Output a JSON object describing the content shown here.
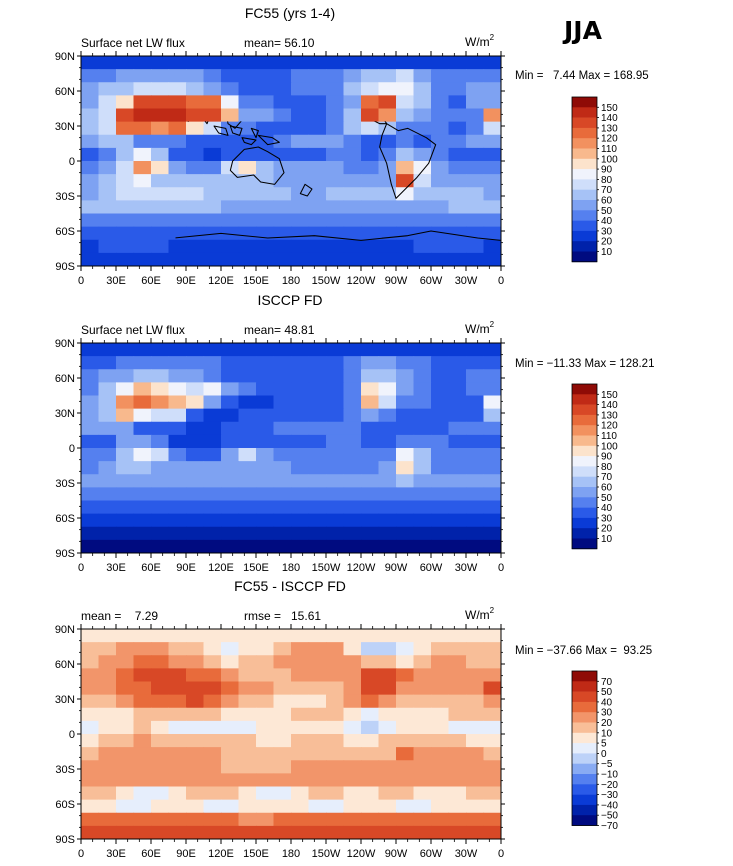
{
  "season_label": "JJA",
  "palettes": {
    "flux": [
      "#000b80",
      "#0022aa",
      "#0a3bd6",
      "#2a5ae8",
      "#5580ef",
      "#7ea2f2",
      "#a6c2f6",
      "#cfdefa",
      "#f0f3fc",
      "#fce3cc",
      "#f8b98d",
      "#f2915f",
      "#e86b3b",
      "#d84826",
      "#c02a16",
      "#8f0b06"
    ],
    "diff": [
      "#000b80",
      "#0022aa",
      "#0a3bd6",
      "#2a5ae8",
      "#5580ef",
      "#89abf3",
      "#bdd2f8",
      "#e6eefc",
      "#fde8d6",
      "#f8be98",
      "#f2956a",
      "#e86b3b",
      "#d84826",
      "#c02a16",
      "#8f0b06"
    ]
  },
  "chart_data": [
    {
      "type": "heatmap",
      "title": "FC55 (yrs 1-4)",
      "variable": "Surface net LW flux",
      "stat_text": "mean=  56.10",
      "units": "W/m",
      "units_sup": "2",
      "minmax_text": "Min =   7.44 Max = 168.95",
      "y_ticks": [
        "90N",
        "60N",
        "30N",
        "0",
        "30S",
        "60S",
        "90S"
      ],
      "x_ticks": [
        "0",
        "30E",
        "60E",
        "90E",
        "120E",
        "150E",
        "180",
        "150W",
        "120W",
        "90W",
        "60W",
        "30W",
        "0"
      ],
      "colorbar_levels": [
        "150",
        "140",
        "130",
        "120",
        "110",
        "100",
        "90",
        "80",
        "70",
        "60",
        "50",
        "40",
        "30",
        "20",
        "10"
      ],
      "field": [
        [
          2,
          2,
          2,
          2,
          2,
          2,
          2,
          2,
          2,
          2,
          2,
          2,
          2,
          2,
          2,
          2,
          2,
          2,
          2,
          2,
          2,
          2,
          2,
          2
        ],
        [
          4,
          4,
          5,
          5,
          5,
          5,
          5,
          4,
          3,
          3,
          3,
          3,
          4,
          4,
          4,
          5,
          6,
          6,
          7,
          5,
          4,
          4,
          4,
          4
        ],
        [
          5,
          6,
          6,
          7,
          7,
          7,
          6,
          5,
          4,
          3,
          3,
          3,
          4,
          4,
          4,
          6,
          7,
          8,
          8,
          6,
          4,
          4,
          5,
          5
        ],
        [
          5,
          7,
          9,
          13,
          13,
          13,
          12,
          12,
          8,
          4,
          4,
          3,
          3,
          3,
          4,
          5,
          12,
          13,
          7,
          6,
          4,
          3,
          5,
          5
        ],
        [
          6,
          7,
          13,
          14,
          14,
          14,
          13,
          13,
          10,
          5,
          5,
          4,
          3,
          3,
          4,
          6,
          13,
          11,
          6,
          5,
          4,
          4,
          4,
          11
        ],
        [
          6,
          7,
          12,
          12,
          11,
          12,
          9,
          7,
          4,
          4,
          3,
          3,
          3,
          3,
          4,
          6,
          7,
          6,
          4,
          4,
          4,
          3,
          4,
          7
        ],
        [
          5,
          6,
          6,
          4,
          4,
          4,
          3,
          3,
          3,
          3,
          3,
          4,
          5,
          5,
          5,
          4,
          3,
          3,
          4,
          3,
          4,
          4,
          5,
          5
        ],
        [
          3,
          4,
          6,
          8,
          6,
          3,
          3,
          2,
          3,
          3,
          3,
          3,
          3,
          3,
          4,
          4,
          3,
          4,
          6,
          5,
          4,
          3,
          3,
          3
        ],
        [
          4,
          5,
          7,
          11,
          9,
          5,
          4,
          4,
          7,
          9,
          6,
          5,
          5,
          5,
          5,
          4,
          4,
          5,
          10,
          8,
          5,
          4,
          4,
          4
        ],
        [
          5,
          6,
          7,
          8,
          6,
          6,
          6,
          6,
          6,
          6,
          6,
          5,
          5,
          5,
          5,
          5,
          5,
          5,
          13,
          7,
          5,
          5,
          5,
          5
        ],
        [
          5,
          6,
          7,
          7,
          7,
          7,
          7,
          6,
          6,
          6,
          6,
          6,
          5,
          5,
          6,
          6,
          6,
          6,
          8,
          6,
          6,
          6,
          6,
          5
        ],
        [
          6,
          6,
          6,
          6,
          6,
          6,
          6,
          6,
          5,
          5,
          5,
          5,
          5,
          5,
          5,
          5,
          5,
          5,
          5,
          5,
          5,
          6,
          6,
          6
        ],
        [
          4,
          4,
          4,
          4,
          4,
          4,
          4,
          4,
          4,
          4,
          4,
          4,
          4,
          4,
          4,
          4,
          4,
          4,
          4,
          4,
          4,
          4,
          4,
          4
        ],
        [
          3,
          3,
          3,
          3,
          3,
          3,
          3,
          3,
          3,
          3,
          3,
          3,
          3,
          3,
          3,
          3,
          3,
          3,
          3,
          3,
          3,
          3,
          3,
          3
        ],
        [
          2,
          3,
          3,
          3,
          3,
          2,
          2,
          2,
          2,
          2,
          2,
          2,
          2,
          2,
          2,
          2,
          2,
          2,
          2,
          3,
          3,
          3,
          3,
          2
        ],
        [
          2,
          2,
          2,
          2,
          2,
          2,
          2,
          2,
          2,
          2,
          2,
          2,
          2,
          2,
          2,
          2,
          2,
          2,
          2,
          2,
          2,
          2,
          2,
          2
        ]
      ]
    },
    {
      "type": "heatmap",
      "title": "ISCCP FD",
      "variable": "Surface net LW flux",
      "stat_text": "mean=  48.81",
      "units": "W/m",
      "units_sup": "2",
      "minmax_text": "Min = −11.33 Max = 128.21",
      "y_ticks": [
        "90N",
        "60N",
        "30N",
        "0",
        "30S",
        "60S",
        "90S"
      ],
      "x_ticks": [
        "0",
        "30E",
        "60E",
        "90E",
        "120E",
        "150E",
        "180",
        "150W",
        "120W",
        "90W",
        "60W",
        "30W",
        "0"
      ],
      "colorbar_levels": [
        "150",
        "140",
        "130",
        "120",
        "110",
        "100",
        "90",
        "80",
        "70",
        "60",
        "50",
        "40",
        "30",
        "20",
        "10"
      ],
      "field": [
        [
          2,
          2,
          2,
          2,
          2,
          2,
          2,
          2,
          2,
          2,
          2,
          2,
          2,
          2,
          2,
          2,
          2,
          2,
          2,
          2,
          2,
          2,
          2,
          2
        ],
        [
          3,
          3,
          4,
          4,
          4,
          4,
          4,
          4,
          3,
          3,
          3,
          3,
          3,
          3,
          3,
          4,
          5,
          5,
          4,
          4,
          3,
          3,
          3,
          3
        ],
        [
          4,
          5,
          5,
          6,
          6,
          5,
          5,
          4,
          3,
          3,
          3,
          3,
          3,
          3,
          3,
          4,
          6,
          6,
          5,
          4,
          3,
          3,
          4,
          4
        ],
        [
          4,
          6,
          8,
          10,
          9,
          8,
          7,
          8,
          5,
          4,
          3,
          3,
          3,
          3,
          3,
          4,
          9,
          8,
          5,
          4,
          3,
          3,
          4,
          4
        ],
        [
          5,
          6,
          11,
          12,
          11,
          10,
          9,
          5,
          3,
          2,
          2,
          3,
          3,
          3,
          3,
          4,
          10,
          7,
          4,
          4,
          3,
          3,
          3,
          8
        ],
        [
          5,
          6,
          10,
          8,
          7,
          7,
          3,
          2,
          2,
          3,
          3,
          3,
          3,
          3,
          3,
          4,
          5,
          4,
          3,
          3,
          3,
          3,
          3,
          6
        ],
        [
          5,
          5,
          5,
          3,
          3,
          3,
          2,
          2,
          3,
          3,
          3,
          4,
          4,
          4,
          4,
          4,
          3,
          3,
          3,
          3,
          3,
          4,
          4,
          4
        ],
        [
          3,
          3,
          5,
          5,
          4,
          2,
          2,
          2,
          3,
          3,
          3,
          3,
          3,
          3,
          4,
          4,
          3,
          3,
          4,
          4,
          4,
          3,
          3,
          3
        ],
        [
          4,
          4,
          6,
          8,
          7,
          4,
          3,
          3,
          5,
          7,
          5,
          4,
          4,
          4,
          4,
          4,
          4,
          4,
          8,
          6,
          4,
          4,
          4,
          4
        ],
        [
          4,
          5,
          6,
          6,
          5,
          5,
          5,
          5,
          5,
          5,
          5,
          5,
          4,
          4,
          4,
          4,
          4,
          5,
          9,
          6,
          4,
          4,
          4,
          4
        ],
        [
          5,
          5,
          5,
          5,
          5,
          5,
          5,
          5,
          5,
          5,
          5,
          5,
          5,
          5,
          5,
          5,
          5,
          5,
          6,
          5,
          5,
          5,
          5,
          5
        ],
        [
          4,
          4,
          4,
          4,
          4,
          4,
          4,
          4,
          4,
          4,
          4,
          4,
          4,
          4,
          4,
          4,
          4,
          4,
          4,
          4,
          4,
          4,
          4,
          4
        ],
        [
          3,
          3,
          3,
          3,
          3,
          3,
          3,
          3,
          3,
          3,
          3,
          3,
          3,
          3,
          3,
          3,
          3,
          3,
          3,
          3,
          3,
          3,
          3,
          3
        ],
        [
          2,
          2,
          2,
          2,
          2,
          2,
          2,
          2,
          2,
          2,
          2,
          2,
          2,
          2,
          2,
          2,
          2,
          2,
          2,
          2,
          2,
          2,
          2,
          2
        ],
        [
          1,
          1,
          1,
          1,
          1,
          1,
          1,
          1,
          1,
          1,
          1,
          1,
          1,
          1,
          1,
          1,
          1,
          1,
          1,
          1,
          1,
          1,
          1,
          1
        ],
        [
          0,
          0,
          0,
          0,
          0,
          0,
          0,
          0,
          0,
          0,
          0,
          0,
          0,
          0,
          0,
          0,
          0,
          0,
          0,
          0,
          0,
          0,
          0,
          0
        ]
      ]
    },
    {
      "type": "heatmap",
      "title": "FC55 - ISCCP FD",
      "variable": "mean =    7.29",
      "stat_text": "rmse =   15.61",
      "units": "W/m",
      "units_sup": "2",
      "minmax_text": "Min = −37.66 Max =  93.25",
      "y_ticks": [
        "90N",
        "60N",
        "30N",
        "0",
        "30S",
        "60S",
        "90S"
      ],
      "x_ticks": [
        "0",
        "30E",
        "60E",
        "90E",
        "120E",
        "150E",
        "180",
        "150W",
        "120W",
        "90W",
        "60W",
        "30W",
        "0"
      ],
      "colorbar_levels": [
        "70",
        "50",
        "40",
        "30",
        "20",
        "10",
        "5",
        "0",
        "−5",
        "−10",
        "−20",
        "−30",
        "−40",
        "−50",
        "−70"
      ],
      "field": [
        [
          8,
          8,
          8,
          8,
          8,
          8,
          8,
          8,
          8,
          8,
          8,
          8,
          8,
          8,
          8,
          8,
          8,
          8,
          8,
          8,
          8,
          8,
          8,
          8
        ],
        [
          9,
          9,
          10,
          10,
          10,
          9,
          9,
          8,
          7,
          8,
          8,
          9,
          10,
          10,
          10,
          8,
          6,
          6,
          7,
          8,
          9,
          9,
          9,
          9
        ],
        [
          9,
          10,
          10,
          11,
          11,
          10,
          10,
          9,
          8,
          9,
          9,
          10,
          10,
          10,
          10,
          10,
          9,
          9,
          8,
          9,
          10,
          10,
          9,
          9
        ],
        [
          10,
          10,
          11,
          12,
          12,
          12,
          11,
          11,
          10,
          9,
          9,
          9,
          10,
          10,
          10,
          10,
          12,
          12,
          11,
          10,
          10,
          10,
          10,
          10
        ],
        [
          10,
          10,
          11,
          11,
          12,
          12,
          12,
          12,
          11,
          10,
          10,
          9,
          9,
          9,
          9,
          10,
          12,
          12,
          10,
          10,
          10,
          10,
          10,
          12
        ],
        [
          9,
          9,
          10,
          11,
          11,
          11,
          12,
          11,
          10,
          9,
          9,
          8,
          8,
          8,
          9,
          10,
          11,
          10,
          9,
          9,
          9,
          9,
          9,
          10
        ],
        [
          8,
          8,
          8,
          9,
          9,
          9,
          9,
          9,
          8,
          8,
          8,
          8,
          9,
          9,
          9,
          8,
          7,
          8,
          8,
          8,
          8,
          9,
          9,
          9
        ],
        [
          7,
          8,
          8,
          9,
          8,
          7,
          7,
          7,
          7,
          7,
          8,
          8,
          8,
          8,
          8,
          7,
          6,
          7,
          8,
          8,
          8,
          7,
          7,
          7
        ],
        [
          8,
          9,
          9,
          10,
          9,
          9,
          9,
          9,
          9,
          9,
          8,
          8,
          9,
          9,
          9,
          8,
          8,
          9,
          9,
          9,
          9,
          9,
          8,
          8
        ],
        [
          9,
          10,
          10,
          10,
          10,
          10,
          10,
          10,
          9,
          9,
          9,
          9,
          9,
          9,
          9,
          9,
          9,
          9,
          11,
          10,
          10,
          10,
          10,
          9
        ],
        [
          10,
          10,
          10,
          10,
          10,
          10,
          10,
          10,
          9,
          9,
          9,
          9,
          10,
          10,
          10,
          10,
          10,
          10,
          10,
          10,
          10,
          10,
          10,
          10
        ],
        [
          10,
          10,
          10,
          10,
          10,
          10,
          10,
          10,
          10,
          10,
          10,
          10,
          10,
          10,
          10,
          10,
          10,
          10,
          10,
          10,
          10,
          10,
          10,
          10
        ],
        [
          9,
          9,
          8,
          7,
          7,
          8,
          9,
          9,
          9,
          8,
          7,
          7,
          8,
          9,
          9,
          8,
          8,
          9,
          9,
          8,
          8,
          8,
          9,
          9
        ],
        [
          8,
          8,
          7,
          7,
          8,
          8,
          8,
          7,
          7,
          8,
          8,
          8,
          8,
          7,
          7,
          8,
          8,
          8,
          7,
          7,
          8,
          8,
          8,
          8
        ],
        [
          11,
          11,
          11,
          11,
          11,
          11,
          11,
          11,
          11,
          10,
          10,
          11,
          11,
          11,
          11,
          11,
          11,
          11,
          11,
          11,
          11,
          11,
          11,
          11
        ],
        [
          12,
          12,
          12,
          12,
          12,
          12,
          12,
          12,
          12,
          12,
          12,
          12,
          12,
          12,
          12,
          12,
          12,
          12,
          12,
          12,
          12,
          12,
          12,
          12
        ]
      ]
    }
  ]
}
